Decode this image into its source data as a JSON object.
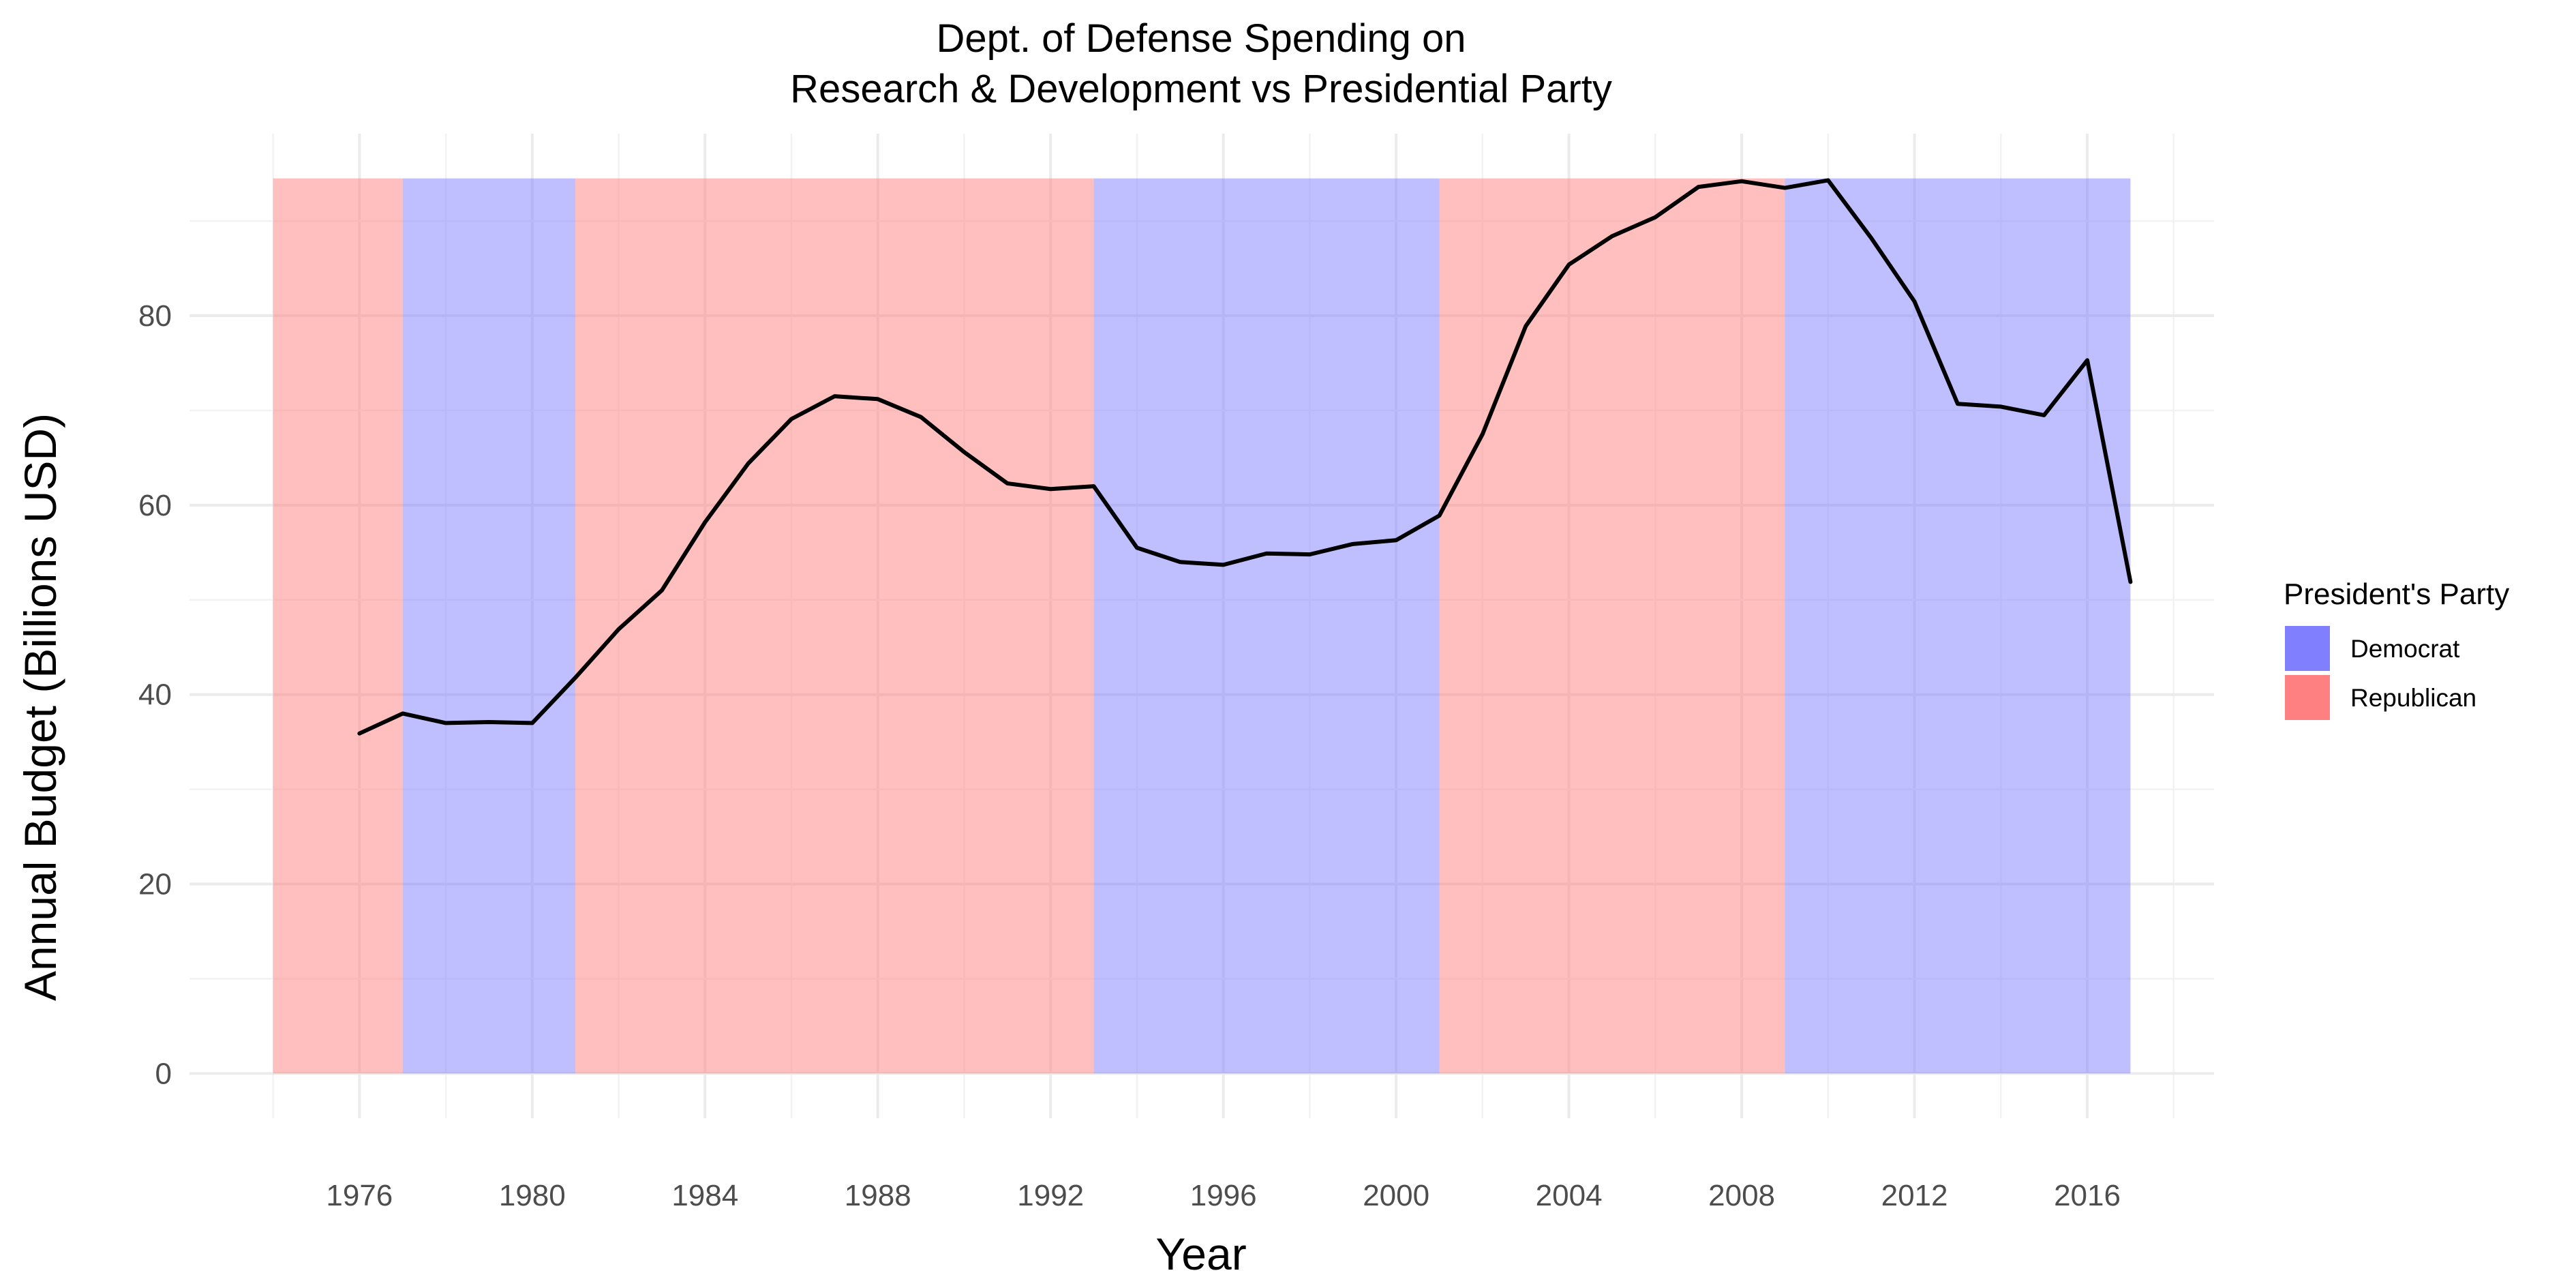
{
  "chart_data": {
    "type": "line",
    "title_line1": "Dept. of Defense Spending on",
    "title_line2": "Research & Development vs Presidential Party",
    "xlabel": "Year",
    "ylabel": "Annual Budget (Billions USD)",
    "xlim": [
      1974,
      2017
    ],
    "ylim": [
      0,
      94.5
    ],
    "x_ticks": [
      1976,
      1980,
      1984,
      1988,
      1992,
      1996,
      2000,
      2004,
      2008,
      2012,
      2016
    ],
    "y_ticks": [
      0,
      20,
      40,
      60,
      80
    ],
    "grid": true,
    "legend": {
      "title": "President's Party",
      "position": "right",
      "items": [
        {
          "label": "Democrat",
          "color": "#8080ff"
        },
        {
          "label": "Republican",
          "color": "#ff8080"
        }
      ]
    },
    "colors": {
      "Democrat": "#8080ff",
      "Republican": "#ff8080",
      "line": "#000000"
    },
    "party_periods": [
      {
        "party": "Republican",
        "start": 1974,
        "end": 1977
      },
      {
        "party": "Democrat",
        "start": 1977,
        "end": 1981
      },
      {
        "party": "Republican",
        "start": 1981,
        "end": 1993
      },
      {
        "party": "Democrat",
        "start": 1993,
        "end": 2001
      },
      {
        "party": "Republican",
        "start": 2001,
        "end": 2009
      },
      {
        "party": "Democrat",
        "start": 2009,
        "end": 2017
      }
    ],
    "x": [
      1976,
      1977,
      1978,
      1979,
      1980,
      1981,
      1982,
      1983,
      1984,
      1985,
      1986,
      1987,
      1988,
      1989,
      1990,
      1991,
      1992,
      1993,
      1994,
      1995,
      1996,
      1997,
      1998,
      1999,
      2000,
      2001,
      2002,
      2003,
      2004,
      2005,
      2006,
      2007,
      2008,
      2009,
      2010,
      2011,
      2012,
      2013,
      2014,
      2015,
      2016,
      2017
    ],
    "y": [
      35.9,
      38.0,
      37.0,
      37.1,
      37.0,
      41.8,
      46.9,
      51.0,
      58.2,
      64.4,
      69.1,
      71.5,
      71.2,
      69.3,
      65.6,
      62.3,
      61.7,
      62.0,
      55.5,
      54.0,
      53.7,
      54.9,
      54.8,
      55.9,
      56.3,
      58.9,
      67.5,
      78.9,
      85.4,
      88.4,
      90.4,
      93.6,
      94.2,
      93.5,
      94.3,
      88.2,
      81.5,
      70.7,
      70.4,
      69.5,
      75.3,
      51.9
    ]
  }
}
